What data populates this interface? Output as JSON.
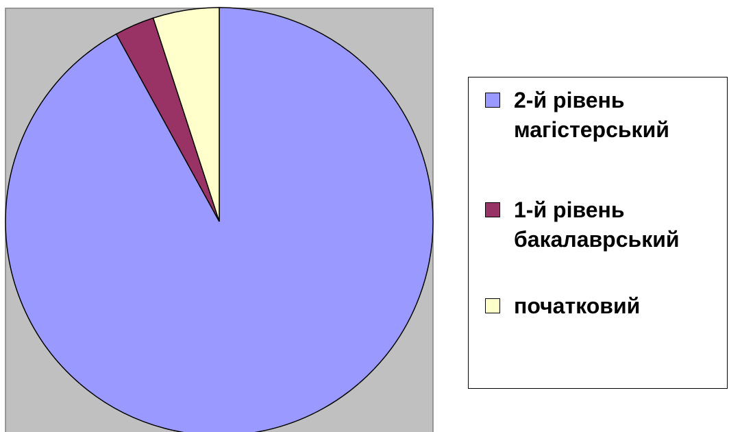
{
  "chart_data": {
    "type": "pie",
    "categories": [
      "2-й рівень магістерський",
      "1-й рівень бакалаврський",
      "початковий"
    ],
    "values": [
      92,
      3,
      5
    ],
    "colors": [
      "#9999ff",
      "#993366",
      "#ffffcc"
    ],
    "legend": "right"
  }
}
